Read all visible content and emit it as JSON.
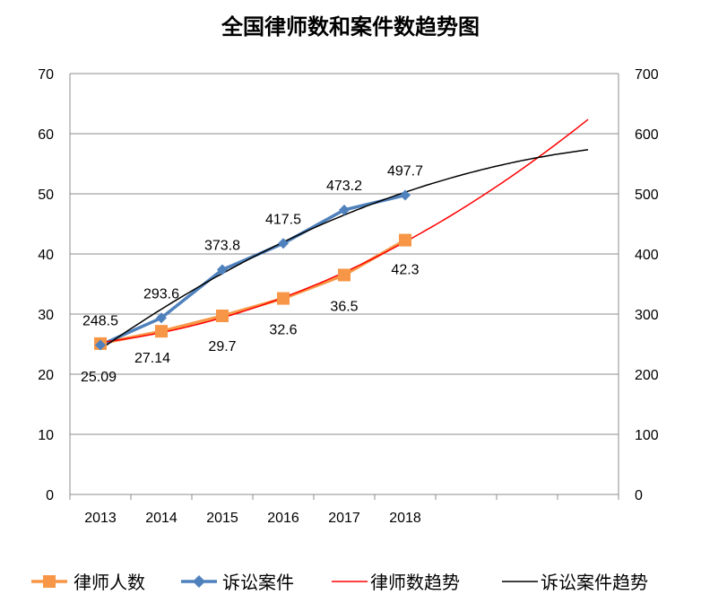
{
  "chart_data": {
    "type": "line",
    "title": "全国律师数和案件数趋势图",
    "categories": [
      "2013",
      "2014",
      "2015",
      "2016",
      "2017",
      "2018"
    ],
    "y_left": {
      "range": [
        0,
        70
      ],
      "ticks": [
        "0",
        "10",
        "20",
        "30",
        "40",
        "50",
        "60",
        "70"
      ]
    },
    "y_right": {
      "range": [
        0,
        700
      ],
      "ticks": [
        "0",
        "100",
        "200",
        "300",
        "400",
        "500",
        "600",
        "700"
      ]
    },
    "grid": true,
    "legend_position": "bottom",
    "series": [
      {
        "name": "律师人数",
        "axis": "left",
        "marker": "square",
        "color": "#F79646",
        "values": [
          25.09,
          27.14,
          29.7,
          32.6,
          36.5,
          42.3
        ],
        "labels": [
          "25.09",
          "27.14",
          "29.7",
          "32.6",
          "36.5",
          "42.3"
        ]
      },
      {
        "name": "诉讼案件",
        "axis": "right",
        "marker": "diamond",
        "color": "#4F81BD",
        "values": [
          248.5,
          293.6,
          373.8,
          417.5,
          473.2,
          497.7
        ],
        "labels": [
          "248.5",
          "293.6",
          "373.8",
          "417.5",
          "473.2",
          "497.7"
        ]
      },
      {
        "name": "律师数趋势",
        "axis": "left",
        "color": "#FF0000",
        "type": "trendline"
      },
      {
        "name": "诉讼案件趋势",
        "axis": "right",
        "color": "#000000",
        "type": "trendline"
      }
    ]
  }
}
